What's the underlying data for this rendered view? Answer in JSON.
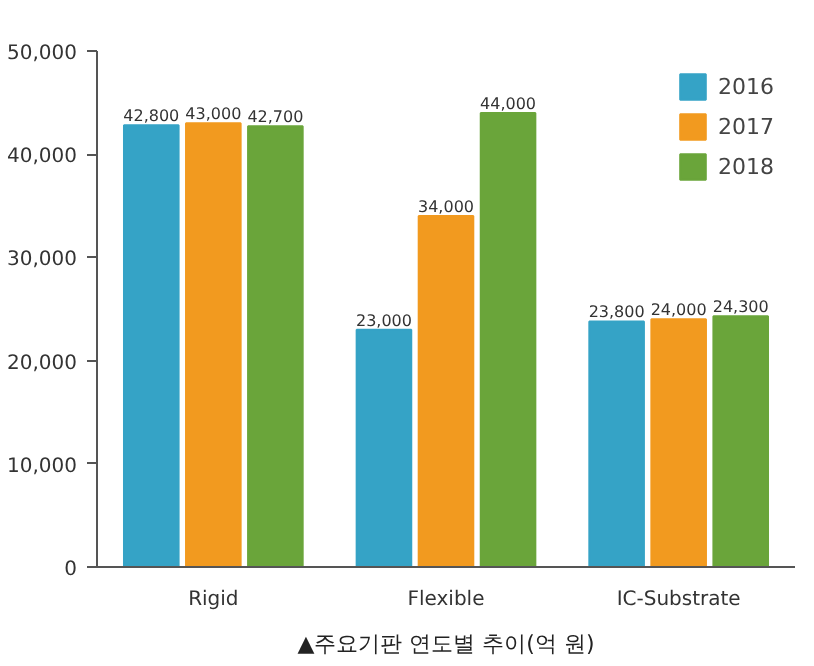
{
  "chart_data": {
    "type": "bar",
    "categories": [
      "Rigid",
      "Flexible",
      "IC-Substrate"
    ],
    "series": [
      {
        "name": "2016",
        "color": "#35a3c6",
        "values": [
          42800,
          23000,
          23800
        ]
      },
      {
        "name": "2017",
        "color": "#f29a1f",
        "values": [
          43000,
          34000,
          24000
        ]
      },
      {
        "name": "2018",
        "color": "#6aa53a",
        "values": [
          42700,
          44000,
          24300
        ]
      }
    ],
    "ylim": [
      0,
      50000
    ],
    "yticks": [
      {
        "value": 0,
        "label": "0"
      },
      {
        "value": 10000,
        "label": "10,000"
      },
      {
        "value": 20000,
        "label": "20,000"
      },
      {
        "value": 30000,
        "label": "30,000"
      },
      {
        "value": 40000,
        "label": "40,000"
      },
      {
        "value": 50000,
        "label": "50,000"
      }
    ],
    "value_labels": [
      [
        "42,800",
        "23,000",
        "23,800"
      ],
      [
        "43,000",
        "34,000",
        "24,000"
      ],
      [
        "42,700",
        "44,000",
        "24,300"
      ]
    ],
    "legend": "top right",
    "grid": false,
    "annotations": [
      "▲주요기판 연도별 추이(억 원)"
    ]
  }
}
